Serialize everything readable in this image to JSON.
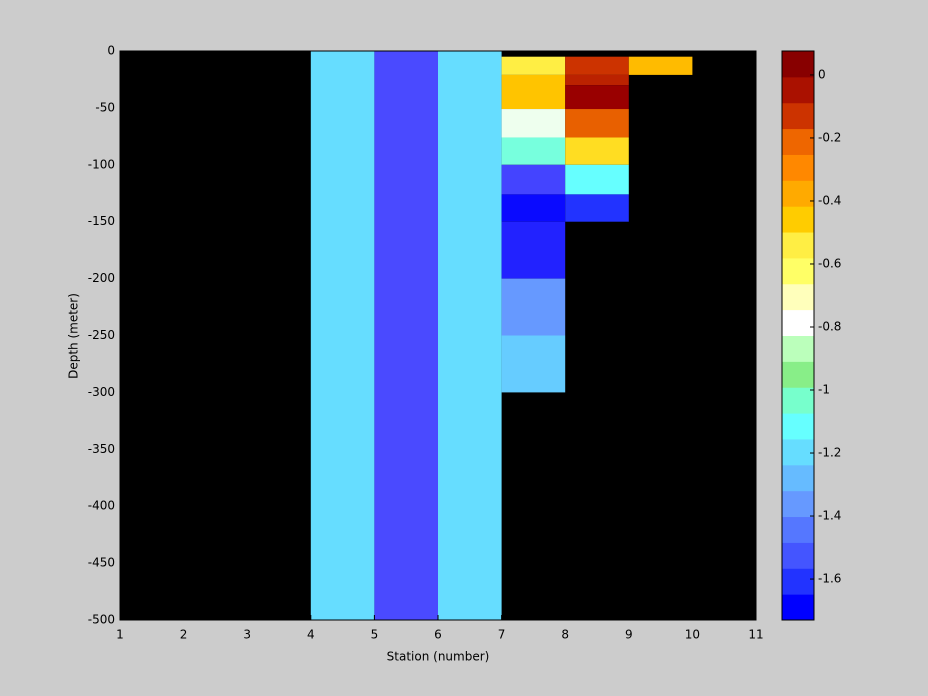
{
  "chart_data": {
    "type": "heatmap",
    "xlabel": "Station (number)",
    "ylabel": "Depth (meter)",
    "xlim": [
      1,
      11
    ],
    "xticks": [
      1,
      2,
      3,
      4,
      5,
      6,
      7,
      8,
      9,
      10,
      11
    ],
    "ylim": [
      -500,
      0
    ],
    "yticks": [
      0,
      -50,
      -100,
      -150,
      -200,
      -250,
      -300,
      -350,
      -400,
      -450,
      -500
    ],
    "background": "#000000",
    "cells": [
      {
        "x": [
          4,
          5
        ],
        "y": [
          0,
          -500
        ],
        "value": -1.35,
        "color": "#66ddff"
      },
      {
        "x": [
          5,
          6
        ],
        "y": [
          0,
          -500
        ],
        "value": -1.6,
        "color": "#4a4aff"
      },
      {
        "x": [
          6,
          7
        ],
        "y": [
          0,
          -500
        ],
        "value": -1.35,
        "color": "#66ddff"
      },
      {
        "x": [
          7,
          8
        ],
        "y": [
          -5,
          -21
        ],
        "value": -0.5,
        "color": "#ffee44"
      },
      {
        "x": [
          7,
          8
        ],
        "y": [
          -21,
          -51
        ],
        "value": -0.38,
        "color": "#ffc400"
      },
      {
        "x": [
          7,
          8
        ],
        "y": [
          -51,
          -76
        ],
        "value": -0.85,
        "color": "#eeffee"
      },
      {
        "x": [
          7,
          8
        ],
        "y": [
          -76,
          -100
        ],
        "value": -1.2,
        "color": "#77ffdd"
      },
      {
        "x": [
          7,
          8
        ],
        "y": [
          -100,
          -126
        ],
        "value": -1.6,
        "color": "#4444ff"
      },
      {
        "x": [
          7,
          8
        ],
        "y": [
          -126,
          -150
        ],
        "value": -1.7,
        "color": "#0a0aff"
      },
      {
        "x": [
          7,
          8
        ],
        "y": [
          -150,
          -200
        ],
        "value": -1.65,
        "color": "#2222ff"
      },
      {
        "x": [
          7,
          8
        ],
        "y": [
          -200,
          -250
        ],
        "value": -1.45,
        "color": "#6699ff"
      },
      {
        "x": [
          7,
          8
        ],
        "y": [
          -250,
          -300
        ],
        "value": -1.38,
        "color": "#66ccff"
      },
      {
        "x": [
          8,
          9
        ],
        "y": [
          -5,
          -21
        ],
        "value": -0.02,
        "color": "#cc3300"
      },
      {
        "x": [
          8,
          9
        ],
        "y": [
          -21,
          -30
        ],
        "value": 0.02,
        "color": "#bb2200"
      },
      {
        "x": [
          8,
          9
        ],
        "y": [
          -30,
          -51
        ],
        "value": 0.06,
        "color": "#990000"
      },
      {
        "x": [
          8,
          9
        ],
        "y": [
          -51,
          -76
        ],
        "value": -0.12,
        "color": "#e86000"
      },
      {
        "x": [
          8,
          9
        ],
        "y": [
          -76,
          -100
        ],
        "value": -0.45,
        "color": "#ffdd22"
      },
      {
        "x": [
          8,
          9
        ],
        "y": [
          -100,
          -126
        ],
        "value": -1.27,
        "color": "#66ffff"
      },
      {
        "x": [
          8,
          9
        ],
        "y": [
          -126,
          -150
        ],
        "value": -1.65,
        "color": "#2233ff"
      },
      {
        "x": [
          9,
          10
        ],
        "y": [
          -5,
          -21
        ],
        "value": -0.35,
        "color": "#ffbb00"
      }
    ],
    "colorbar": {
      "lim": [
        -1.73,
        0.076
      ],
      "ticks": [
        0,
        -0.2,
        -0.4,
        -0.6,
        -0.8,
        -1,
        -1.2,
        -1.4,
        -1.6
      ],
      "colors": [
        "#0000ff",
        "#2233ff",
        "#4455ff",
        "#5577ff",
        "#6699ff",
        "#66bbff",
        "#66ddff",
        "#66ffff",
        "#77ffcc",
        "#88ee88",
        "#bbffbb",
        "#ffffff",
        "#ffffbb",
        "#ffff66",
        "#ffee44",
        "#ffcc00",
        "#ffaa00",
        "#ff8800",
        "#ee6600",
        "#cc3300",
        "#aa1100",
        "#880000"
      ]
    }
  }
}
